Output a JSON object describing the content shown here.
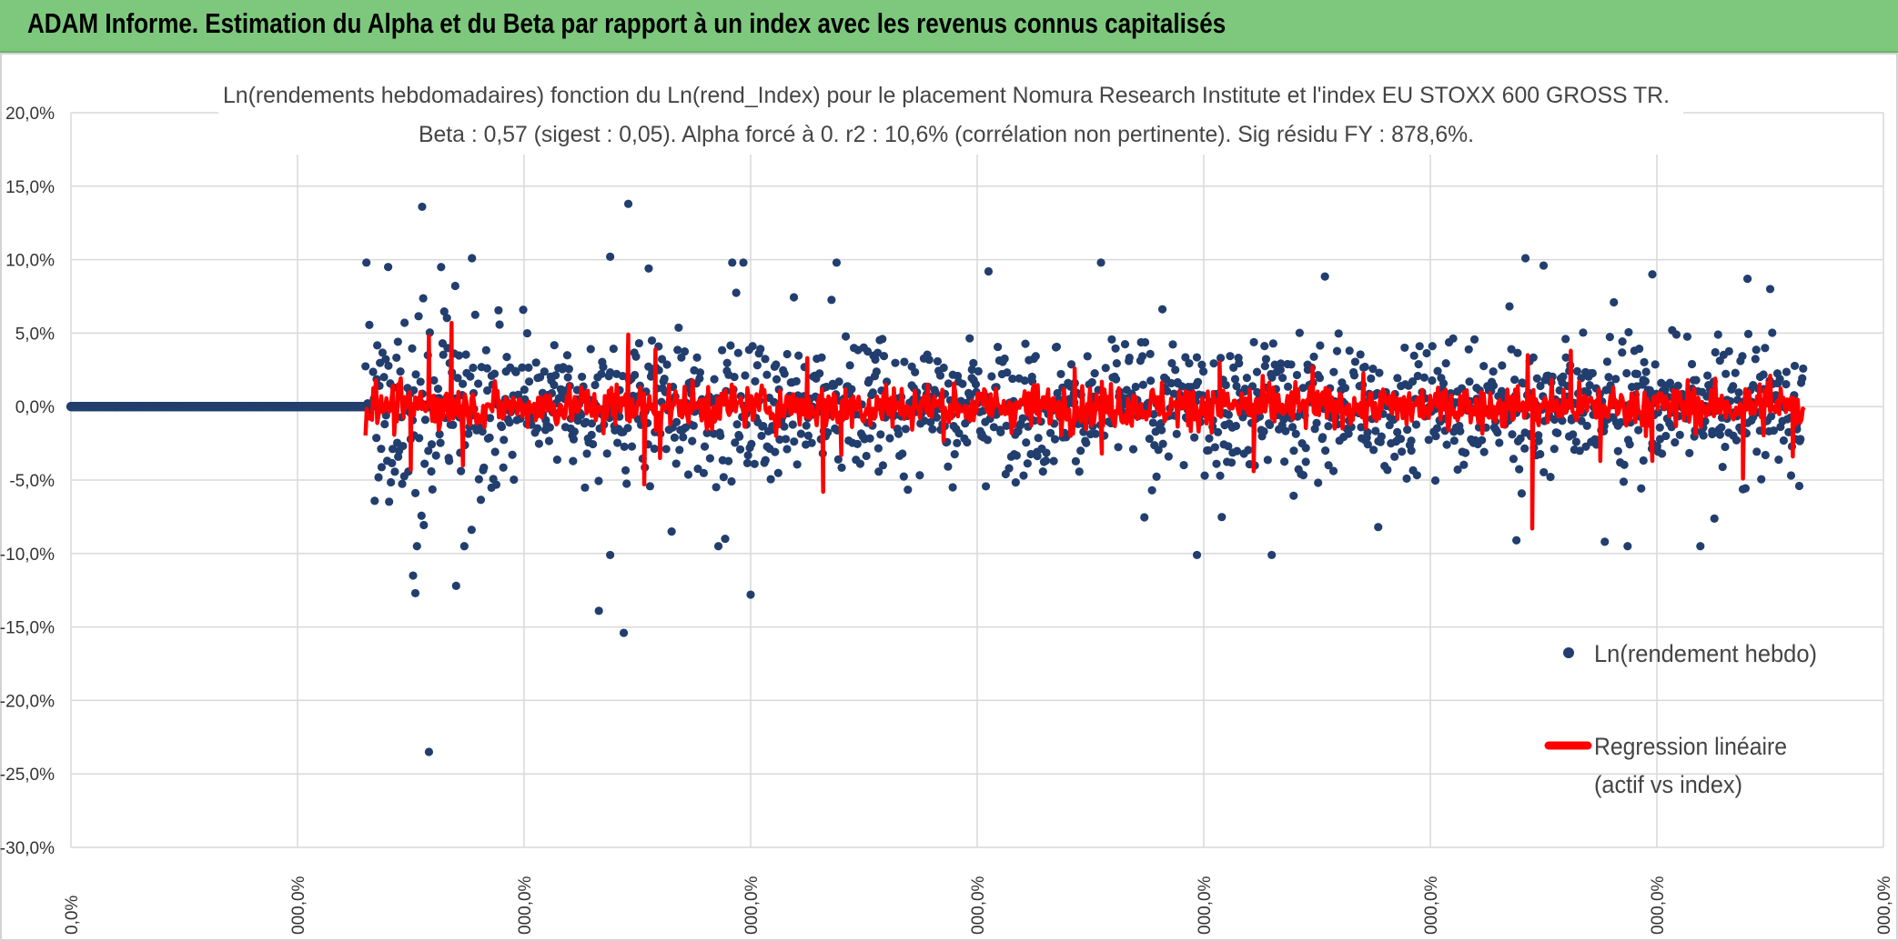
{
  "header": {
    "title": "ADAM Informe. Estimation du Alpha et du Beta par rapport à un index avec les revenus connus capitalisés"
  },
  "colors": {
    "header_bg": "#7dc87d",
    "scatter": "#223e6e",
    "regression": "#ff0000",
    "grid": "#d9d9d9",
    "corner_accent": "#f2c21a"
  },
  "chart_data": {
    "type": "scatter",
    "title": "Ln(rendements hebdomadaires) fonction du Ln(rend_Index) pour le placement Nomura Research Institute et l'index EU STOXX 600 GROSS TR.",
    "subtitle": "Beta : 0,57 (sigest : 0,05). Alpha forcé à 0. r2 : 10,6% (corrélation non pertinente). Sig résidu FY : 878,6%.",
    "yticks": [
      "20,0%",
      "15,0%",
      "10,0%",
      "5,0%",
      "0,0%",
      "-5,0%",
      "-10,0%",
      "-15,0%",
      "-20,0%",
      "-25,0%",
      "-30,0%"
    ],
    "xticks": [
      "0,0%",
      "000,0%",
      "000,0%",
      "000,0%",
      "000,0%",
      "000,0%",
      "000,0%",
      "000,0%",
      "000,0%"
    ],
    "ylim": [
      -30,
      20
    ],
    "grid": true,
    "legend_position": "right",
    "series": [
      {
        "name": "Ln(rendement hebdo)",
        "kind": "scatter"
      },
      {
        "name": "Regression linéaire (actif vs index)",
        "kind": "line"
      }
    ],
    "legend": {
      "scatter_label": "Ln(rendement hebdo)",
      "regression_label_line1": "Regression linéaire",
      "regression_label_line2": "(actif vs index)"
    },
    "flat_segment": {
      "x_range": [
        0,
        1.3
      ],
      "y": 0
    },
    "data_x_range": [
      1.3,
      7.65
    ],
    "outliers": [
      [
        1.55,
        13.6
      ],
      [
        1.58,
        -23.5
      ],
      [
        2.38,
        10.2
      ],
      [
        2.46,
        13.8
      ],
      [
        2.44,
        -15.4
      ],
      [
        2.33,
        -13.9
      ],
      [
        1.52,
        -12.7
      ],
      [
        1.51,
        -11.5
      ],
      [
        1.7,
        -12.2
      ],
      [
        3.0,
        -12.8
      ],
      [
        4.97,
        -10.1
      ],
      [
        1.4,
        9.5
      ],
      [
        1.77,
        10.1
      ],
      [
        6.42,
        10.1
      ],
      [
        2.38,
        -10.1
      ],
      [
        5.3,
        -10.1
      ],
      [
        6.38,
        -9.1
      ],
      [
        2.55,
        9.4
      ],
      [
        6.77,
        -9.2
      ],
      [
        6.5,
        9.6
      ],
      [
        4.05,
        9.2
      ],
      [
        6.98,
        9.0
      ],
      [
        7.4,
        8.7
      ],
      [
        7.5,
        8.0
      ],
      [
        5.77,
        -8.2
      ]
    ],
    "regression_spikes": [
      [
        1.5,
        -4.3
      ],
      [
        1.58,
        4.8
      ],
      [
        1.68,
        5.7
      ],
      [
        1.73,
        -4.0
      ],
      [
        2.46,
        4.9
      ],
      [
        2.53,
        -5.3
      ],
      [
        2.58,
        3.9
      ],
      [
        2.6,
        -3.5
      ],
      [
        3.25,
        3.3
      ],
      [
        3.32,
        -5.8
      ],
      [
        3.4,
        -3.3
      ],
      [
        4.43,
        2.6
      ],
      [
        4.55,
        -3.2
      ],
      [
        5.07,
        3.0
      ],
      [
        5.22,
        -4.4
      ],
      [
        5.48,
        2.7
      ],
      [
        6.43,
        3.5
      ],
      [
        6.45,
        -8.3
      ],
      [
        6.62,
        3.8
      ],
      [
        6.75,
        -3.7
      ],
      [
        6.98,
        -3.7
      ],
      [
        7.38,
        -4.9
      ],
      [
        7.5,
        2.1
      ],
      [
        7.6,
        -3.4
      ]
    ]
  }
}
